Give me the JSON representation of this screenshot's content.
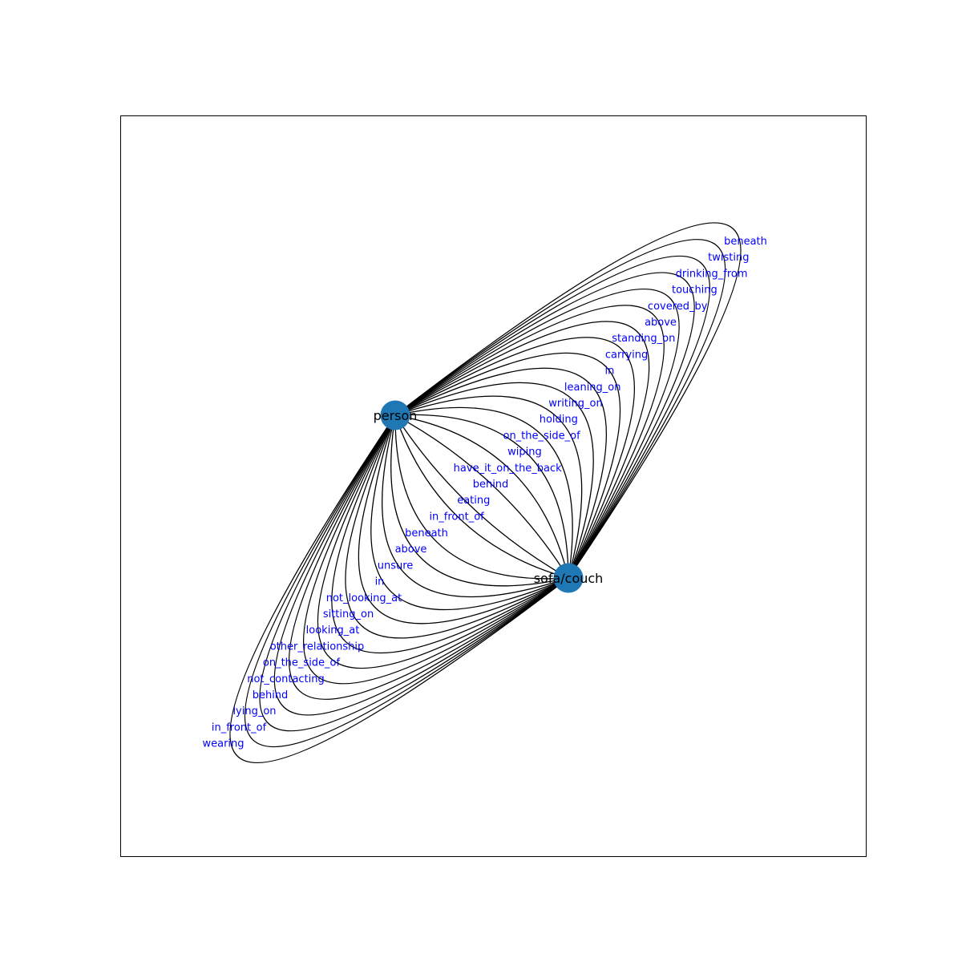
{
  "graph": {
    "node_color": "#1f77b4",
    "edge_color": "#000000",
    "label_color": "#0000ff",
    "nodes": [
      {
        "id": "person",
        "label": "person"
      },
      {
        "id": "sofa",
        "label": "sofa/couch"
      }
    ],
    "edges_person_to_sofa": [
      "beneath",
      "twisting",
      "drinking_from",
      "touching",
      "covered_by",
      "above",
      "standing_on",
      "carrying",
      "in",
      "leaning_on",
      "writing_on",
      "holding",
      "on_the_side_of",
      "wiping",
      "have_it_on_the_back",
      "behind",
      "eating",
      "in_front_of"
    ],
    "edges_sofa_to_person": [
      "beneath",
      "above",
      "unsure",
      "in",
      "not_looking_at",
      "sitting_on",
      "looking_at",
      "other_relationship",
      "on_the_side_of",
      "not_contacting",
      "behind",
      "lying_on",
      "in_front_of",
      "wearing"
    ]
  }
}
